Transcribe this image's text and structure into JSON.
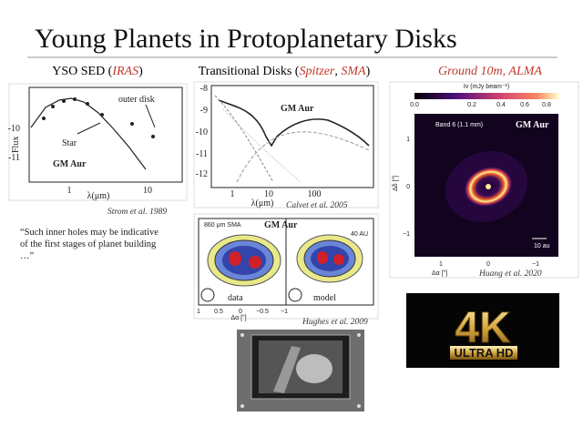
{
  "title": "Young Planets in Protoplanetary Disks",
  "headings": [
    [
      "YSO SED (",
      "IRAS",
      ")"
    ],
    [
      "Transitional Disks (",
      "Spitzer",
      ", ",
      "SMA",
      ")"
    ],
    [
      "Ground 10m, ALMA"
    ]
  ],
  "sed": {
    "y_label": "Flux",
    "x_label": "λ(μm)",
    "x_ticks": [
      "1",
      "10"
    ],
    "y_ticks": [
      "-10",
      "-11"
    ],
    "annotations": [
      "outer disk",
      "Star",
      "GM Aur"
    ],
    "credit": "Strom et al. 1989"
  },
  "spitzer": {
    "y_ticks": [
      "-8",
      "-9",
      "-10",
      "-11",
      "-12"
    ],
    "x_ticks": [
      "1",
      "10",
      "100"
    ],
    "x_label": "λ(μm)",
    "label": "GM Aur",
    "credit": "Calvet et al. 2005"
  },
  "sma": {
    "band": "860 μm SMA",
    "label": "GM Aur",
    "scale": "40 AU",
    "panels": [
      "data",
      "model"
    ],
    "x_ticks": [
      "1",
      "0.5",
      "0",
      "−0.5",
      "−1"
    ],
    "x_label": "Δα [\"]",
    "credit": "Hughes et al. 2009"
  },
  "alma": {
    "colorbar_label": "Iν (mJy beam⁻¹)",
    "colorbar_ticks": [
      "0.0",
      "0.2",
      "0.4",
      "0.6",
      "0.8"
    ],
    "band": "Band 6 (1.1 mm)",
    "label": "GM Aur",
    "scale": "10 au",
    "y_ticks": [
      "1",
      "0",
      "−1"
    ],
    "x_ticks": [
      "1",
      "0",
      "−1"
    ],
    "x_label": "Δα [\"]",
    "y_label": "Δδ [\"]",
    "credit": "Huang et al. 2020"
  },
  "quote": [
    "“Such inner holes may be indicative",
    "of the first stages of planet building",
    "…”"
  ],
  "badge": {
    "main": "4K",
    "sub": "ULTRA HD"
  }
}
